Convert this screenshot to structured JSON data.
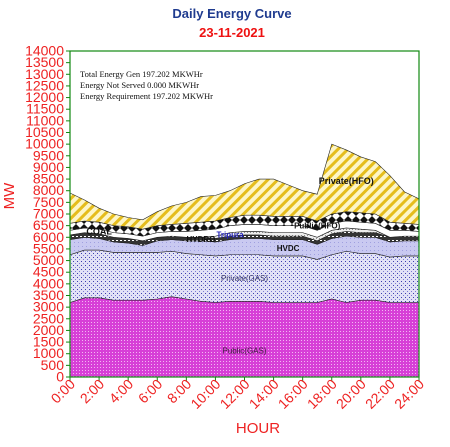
{
  "chart_data": {
    "type": "area",
    "title": "Daily Energy Curve",
    "subtitle": "23-11-2021",
    "xlabel": "HOUR",
    "ylabel": "MW",
    "ylim": [
      0,
      14000
    ],
    "xlim": [
      0,
      24
    ],
    "y_ticks": [
      0,
      500,
      1000,
      1500,
      2000,
      2500,
      3000,
      3500,
      4000,
      4500,
      5000,
      5500,
      6000,
      6500,
      7000,
      7500,
      8000,
      8500,
      9000,
      9500,
      10000,
      10500,
      11000,
      11500,
      12000,
      12500,
      13000,
      13500,
      14000
    ],
    "x_tick_labels": [
      "0:00",
      "2:00",
      "4:00",
      "6:00",
      "8:00",
      "10:00",
      "12:00",
      "14:00",
      "16:00",
      "18:00",
      "20:00",
      "22:00",
      "24:00"
    ],
    "annotations": [
      "Total Energy Gen 197.202 MKWHr",
      "Energy Not Served   0.000 MKWHr",
      "Energy Requirement       197.202 MKWHr"
    ],
    "x": [
      0,
      1,
      2,
      3,
      4,
      5,
      6,
      7,
      8,
      9,
      10,
      11,
      12,
      13,
      14,
      15,
      16,
      17,
      18,
      19,
      20,
      21,
      22,
      23,
      24
    ],
    "series": [
      {
        "name": "Public(GAS)",
        "color": "#e055e0",
        "values": [
          3200,
          3400,
          3400,
          3300,
          3300,
          3300,
          3350,
          3450,
          3350,
          3250,
          3200,
          3250,
          3250,
          3250,
          3200,
          3200,
          3200,
          3200,
          3350,
          3200,
          3300,
          3300,
          3200,
          3200,
          3200
        ]
      },
      {
        "name": "Private(GAS)",
        "color": "#b0b0e8",
        "values": [
          2050,
          2050,
          2050,
          2050,
          2050,
          2050,
          2000,
          1950,
          1950,
          2000,
          2000,
          2000,
          2000,
          2000,
          2000,
          2000,
          2000,
          1850,
          1900,
          2200,
          2000,
          2000,
          1950,
          2000,
          2000
        ]
      },
      {
        "name": "HVDC",
        "color": "#c8c8f0",
        "values": [
          650,
          550,
          500,
          450,
          400,
          300,
          500,
          500,
          550,
          600,
          600,
          650,
          700,
          700,
          700,
          700,
          700,
          650,
          700,
          650,
          700,
          700,
          650,
          650,
          650
        ]
      },
      {
        "name": "HYDRO",
        "color": "#404040",
        "values": [
          200,
          200,
          200,
          200,
          200,
          200,
          150,
          150,
          150,
          150,
          150,
          150,
          150,
          150,
          150,
          150,
          150,
          150,
          200,
          200,
          200,
          200,
          200,
          200,
          200
        ]
      },
      {
        "name": "Tripura",
        "color": "#e0e0e0",
        "values": [
          0,
          0,
          0,
          0,
          0,
          0,
          0,
          0,
          0,
          0,
          100,
          150,
          150,
          150,
          150,
          150,
          150,
          150,
          150,
          150,
          150,
          100,
          0,
          0,
          0
        ]
      },
      {
        "name": "COAL",
        "color": "#ffffff",
        "values": [
          200,
          200,
          200,
          200,
          200,
          200,
          200,
          200,
          250,
          300,
          300,
          300,
          300,
          300,
          300,
          300,
          300,
          300,
          300,
          300,
          300,
          300,
          300,
          250,
          200
        ]
      },
      {
        "name": "Public(HFO)",
        "color": "#a0a0a0",
        "values": [
          300,
          300,
          300,
          300,
          300,
          300,
          300,
          300,
          350,
          350,
          350,
          350,
          400,
          400,
          400,
          400,
          400,
          400,
          400,
          400,
          400,
          400,
          350,
          300,
          300
        ]
      },
      {
        "name": "Private(HFO)",
        "color": "#f0d020",
        "values": [
          1300,
          900,
          600,
          500,
          400,
          400,
          600,
          800,
          900,
          1100,
          1100,
          1150,
          1350,
          1550,
          1600,
          1350,
          1100,
          1150,
          3000,
          2650,
          2400,
          2250,
          2000,
          1350,
          1100
        ]
      }
    ],
    "series_label_positions": [
      "bottom",
      "middle",
      "middle",
      "middle",
      "middle",
      "left",
      "right",
      "right"
    ],
    "grid": false,
    "legend": "none"
  }
}
